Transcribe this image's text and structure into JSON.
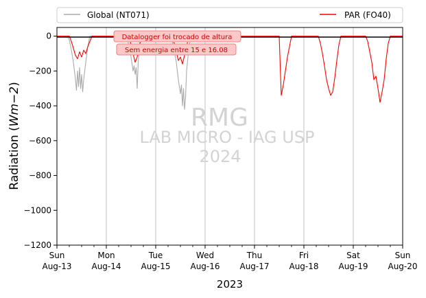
{
  "chart_data": {
    "type": "line",
    "title": "",
    "xlabel": "2023",
    "ylabel_prefix": "Radiation (",
    "ylabel_unit": "Wm−2",
    "ylabel_suffix": ")",
    "ylim": [
      -1200,
      50
    ],
    "xlim": [
      "2023-08-13",
      "2023-08-20"
    ],
    "grid": "vertical-major",
    "legend_placement": "top",
    "x_ticks": [
      {
        "day": "Sun",
        "date": "Aug-13"
      },
      {
        "day": "Mon",
        "date": "Aug-14"
      },
      {
        "day": "Tue",
        "date": "Aug-15"
      },
      {
        "day": "Wed",
        "date": "Aug-16"
      },
      {
        "day": "Thu",
        "date": "Aug-17"
      },
      {
        "day": "Fri",
        "date": "Aug-18"
      },
      {
        "day": "Sat",
        "date": "Aug-19"
      },
      {
        "day": "Sun",
        "date": "Aug-20"
      }
    ],
    "y_ticks": [
      "0",
      "−200",
      "−400",
      "−600",
      "−800",
      "−1000",
      "−1200"
    ],
    "zero_line_color": "#000000",
    "series": [
      {
        "name": "Global (NT071)",
        "color": "#aaaaaa",
        "points": [
          [
            "2023-08-13 05:00",
            0
          ],
          [
            "2023-08-13 06:00",
            -20
          ],
          [
            "2023-08-13 07:00",
            -80
          ],
          [
            "2023-08-13 08:00",
            -150
          ],
          [
            "2023-08-13 09:00",
            -250
          ],
          [
            "2023-08-13 09:30",
            -310
          ],
          [
            "2023-08-13 10:00",
            -200
          ],
          [
            "2023-08-13 10:30",
            -290
          ],
          [
            "2023-08-13 11:00",
            -180
          ],
          [
            "2023-08-13 11:30",
            -300
          ],
          [
            "2023-08-13 12:00",
            -220
          ],
          [
            "2023-08-13 12:30",
            -320
          ],
          [
            "2023-08-13 13:00",
            -250
          ],
          [
            "2023-08-13 14:00",
            -150
          ],
          [
            "2023-08-13 15:00",
            -60
          ],
          [
            "2023-08-13 16:00",
            0
          ],
          [
            "2023-08-14 10:00",
            0
          ],
          [
            "2023-08-14 11:00",
            -60
          ],
          [
            "2023-08-14 12:00",
            -120
          ],
          [
            "2023-08-14 13:00",
            -200
          ],
          [
            "2023-08-14 13:30",
            -170
          ],
          [
            "2023-08-14 14:00",
            -220
          ],
          [
            "2023-08-14 14:30",
            -180
          ],
          [
            "2023-08-14 15:00",
            -300
          ],
          [
            "2023-08-14 15:30",
            -150
          ],
          [
            "2023-08-14 16:00",
            -80
          ],
          [
            "2023-08-14 17:00",
            0
          ],
          [
            "2023-08-15 07:00",
            0
          ],
          [
            "2023-08-15 08:00",
            -30
          ],
          [
            "2023-08-15 09:00",
            -80
          ],
          [
            "2023-08-15 10:00",
            -150
          ],
          [
            "2023-08-15 11:00",
            -250
          ],
          [
            "2023-08-15 12:00",
            -330
          ],
          [
            "2023-08-15 12:30",
            -280
          ],
          [
            "2023-08-15 13:00",
            -400
          ],
          [
            "2023-08-15 13:30",
            -300
          ],
          [
            "2023-08-15 14:00",
            -420
          ],
          [
            "2023-08-15 14:30",
            -350
          ],
          [
            "2023-08-15 15:00",
            -200
          ],
          [
            "2023-08-15 16:00",
            -80
          ],
          [
            "2023-08-15 17:00",
            0
          ]
        ]
      },
      {
        "name": "PAR (FO40)",
        "color": "#ff0000",
        "points": [
          [
            "2023-08-13 00:00",
            0
          ],
          [
            "2023-08-13 06:00",
            0
          ],
          [
            "2023-08-13 07:00",
            -30
          ],
          [
            "2023-08-13 08:00",
            -70
          ],
          [
            "2023-08-13 09:00",
            -110
          ],
          [
            "2023-08-13 10:00",
            -130
          ],
          [
            "2023-08-13 11:00",
            -90
          ],
          [
            "2023-08-13 12:00",
            -120
          ],
          [
            "2023-08-13 13:00",
            -80
          ],
          [
            "2023-08-13 14:00",
            -100
          ],
          [
            "2023-08-13 15:00",
            -60
          ],
          [
            "2023-08-13 16:00",
            -30
          ],
          [
            "2023-08-13 17:00",
            0
          ],
          [
            "2023-08-14 11:00",
            0
          ],
          [
            "2023-08-14 12:00",
            -50
          ],
          [
            "2023-08-14 13:00",
            -100
          ],
          [
            "2023-08-14 14:00",
            -150
          ],
          [
            "2023-08-14 15:00",
            -120
          ],
          [
            "2023-08-14 16:00",
            -60
          ],
          [
            "2023-08-14 17:00",
            0
          ],
          [
            "2023-08-15 07:00",
            0
          ],
          [
            "2023-08-15 09:00",
            -40
          ],
          [
            "2023-08-15 10:00",
            -90
          ],
          [
            "2023-08-15 11:00",
            -140
          ],
          [
            "2023-08-15 12:00",
            -120
          ],
          [
            "2023-08-15 13:00",
            -160
          ],
          [
            "2023-08-15 14:00",
            -110
          ],
          [
            "2023-08-15 15:00",
            -60
          ],
          [
            "2023-08-15 16:00",
            0
          ],
          [
            "2023-08-17 12:00",
            0
          ],
          [
            "2023-08-17 13:00",
            -340
          ],
          [
            "2023-08-17 14:00",
            -280
          ],
          [
            "2023-08-17 15:00",
            -200
          ],
          [
            "2023-08-17 16:00",
            -120
          ],
          [
            "2023-08-17 17:00",
            -60
          ],
          [
            "2023-08-17 18:00",
            0
          ],
          [
            "2023-08-18 07:00",
            0
          ],
          [
            "2023-08-18 08:00",
            -40
          ],
          [
            "2023-08-18 09:00",
            -100
          ],
          [
            "2023-08-18 10:00",
            -170
          ],
          [
            "2023-08-18 11:00",
            -250
          ],
          [
            "2023-08-18 12:00",
            -300
          ],
          [
            "2023-08-18 13:00",
            -340
          ],
          [
            "2023-08-18 14:00",
            -320
          ],
          [
            "2023-08-18 15:00",
            -240
          ],
          [
            "2023-08-18 16:00",
            -140
          ],
          [
            "2023-08-18 17:00",
            -50
          ],
          [
            "2023-08-18 18:00",
            0
          ],
          [
            "2023-08-19 06:00",
            0
          ],
          [
            "2023-08-19 07:00",
            -30
          ],
          [
            "2023-08-19 08:00",
            -90
          ],
          [
            "2023-08-19 09:00",
            -150
          ],
          [
            "2023-08-19 10:00",
            -250
          ],
          [
            "2023-08-19 11:00",
            -230
          ],
          [
            "2023-08-19 12:00",
            -300
          ],
          [
            "2023-08-19 13:00",
            -380
          ],
          [
            "2023-08-19 14:00",
            -320
          ],
          [
            "2023-08-19 15:00",
            -250
          ],
          [
            "2023-08-19 16:00",
            -130
          ],
          [
            "2023-08-19 17:00",
            -40
          ],
          [
            "2023-08-19 18:00",
            0
          ],
          [
            "2023-08-20 00:00",
            0
          ]
        ]
      }
    ],
    "annotations": [
      {
        "text": "Datalogger foi trocado de altura"
      },
      {
        "text": "Sem energia entre 15 e 16.08"
      }
    ],
    "watermark": [
      "RMG",
      "LAB MICRO - IAG USP",
      "2024"
    ]
  }
}
